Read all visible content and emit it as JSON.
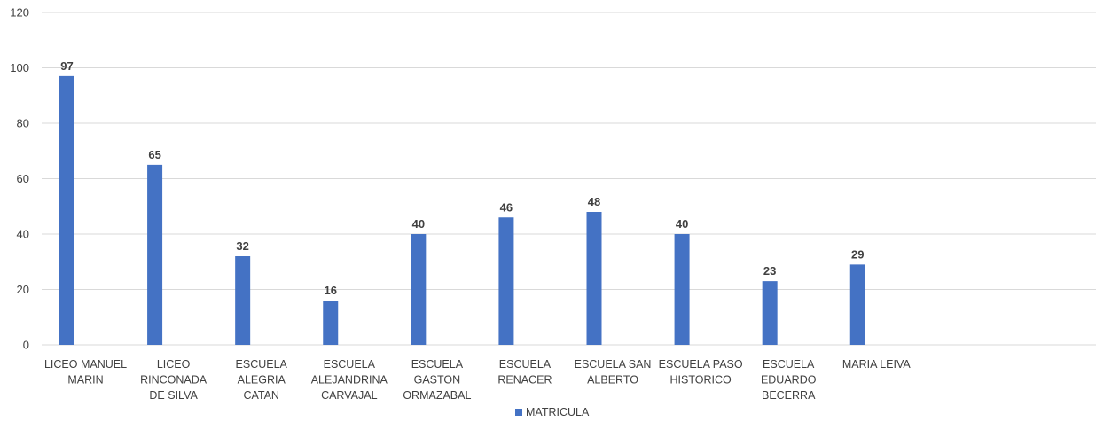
{
  "chart_data": {
    "type": "bar",
    "categories": [
      [
        "LICEO MANUEL",
        "MARIN"
      ],
      [
        "LICEO",
        "RINCONADA",
        "DE SILVA"
      ],
      [
        "ESCUELA",
        "ALEGRIA",
        "CATAN"
      ],
      [
        "ESCUELA",
        "ALEJANDRINA",
        "CARVAJAL"
      ],
      [
        "ESCUELA",
        "GASTON",
        "ORMAZABAL"
      ],
      [
        "ESCUELA",
        "RENACER"
      ],
      [
        "ESCUELA SAN",
        "ALBERTO"
      ],
      [
        "ESCUELA PASO",
        "HISTORICO"
      ],
      [
        "ESCUELA",
        "EDUARDO",
        "BECERRA"
      ],
      [
        "MARIA LEIVA"
      ],
      [],
      []
    ],
    "series": [
      {
        "name": "MATRICULA",
        "values": [
          97,
          65,
          32,
          16,
          40,
          46,
          48,
          40,
          23,
          29,
          null,
          null
        ]
      }
    ],
    "ylim": [
      0,
      120
    ],
    "yticks": [
      0,
      20,
      40,
      60,
      80,
      100,
      120
    ],
    "grid": true,
    "data_labels": true,
    "legend": "bottom",
    "colors": {
      "bar": "#4472C4",
      "grid": "#D9D9D9",
      "text": "#404040"
    }
  }
}
